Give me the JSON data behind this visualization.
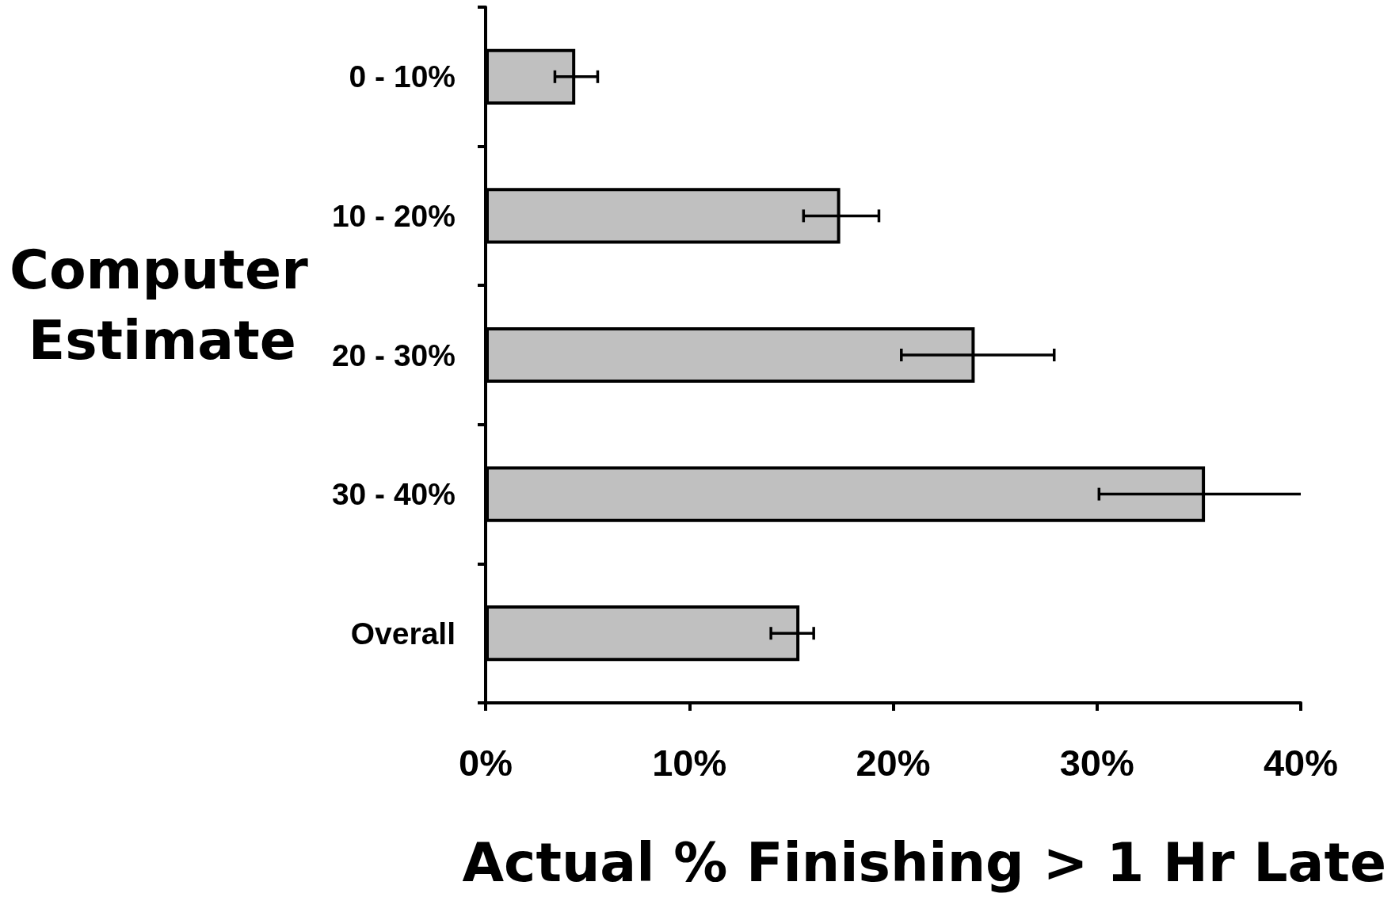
{
  "chart_data": {
    "type": "bar",
    "orientation": "horizontal",
    "xlabel": "Actual % Finishing > 1 Hr Late",
    "ylabel": "Computer Estimate",
    "categories": [
      "0 - 10%",
      "10 - 20%",
      "20 - 30%",
      "30 - 40%",
      "Overall"
    ],
    "values": [
      4.4,
      17.4,
      24.0,
      35.3,
      15.4
    ],
    "errors": [
      [
        3.4,
        5.5
      ],
      [
        15.6,
        19.3
      ],
      [
        20.4,
        27.9
      ],
      [
        30.1,
        40
      ],
      [
        14.0,
        16.1
      ]
    ],
    "color": "#c0c0c0",
    "xlim": [
      0,
      40
    ],
    "xticks": [
      {
        "value": 0,
        "label": "0%"
      },
      {
        "value": 10,
        "label": "10%"
      },
      {
        "value": 20,
        "label": "20%"
      },
      {
        "value": 30,
        "label": "30%"
      },
      {
        "value": 40,
        "label": "40%"
      }
    ]
  }
}
